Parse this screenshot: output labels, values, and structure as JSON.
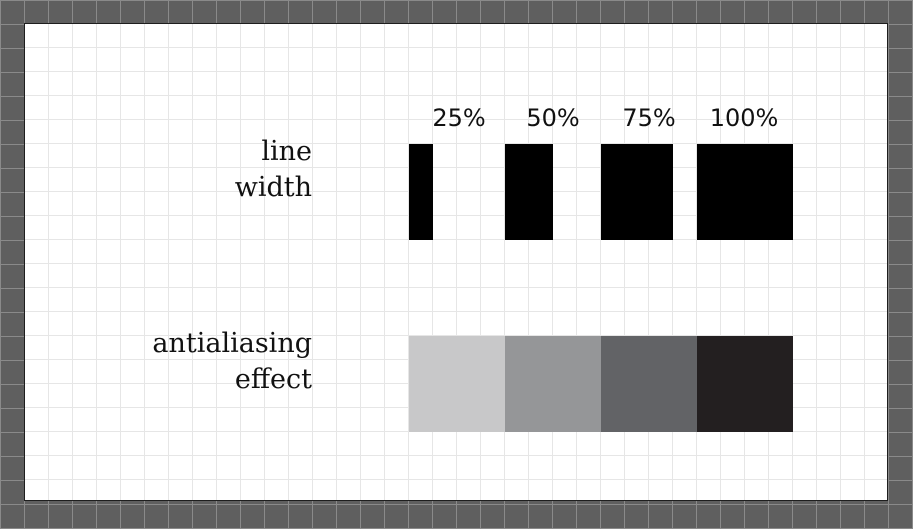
{
  "percent_labels": [
    "25%",
    "50%",
    "75%",
    "100%"
  ],
  "line_fill_fractions": [
    0.25,
    0.5,
    0.75,
    1.0
  ],
  "rows": {
    "line_width": {
      "line1": "line",
      "line2": "width"
    },
    "antialiasing": {
      "line1": "antialiasing",
      "line2": "effect"
    }
  },
  "antialias_colors": [
    "#c8c8c9",
    "#959698",
    "#626366",
    "#231f20"
  ],
  "line_color": "#000000"
}
